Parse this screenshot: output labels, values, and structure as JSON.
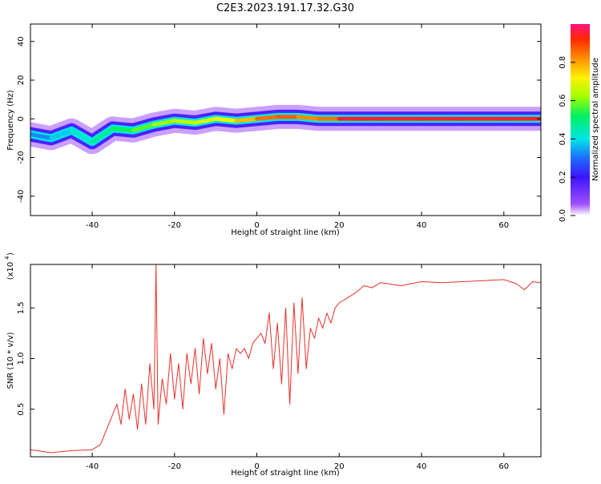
{
  "title": "C2E3.2023.191.17.32.G30",
  "chart_data": [
    {
      "type": "heatmap",
      "xlabel": "Height of straight line (km)",
      "ylabel": "Frequency (Hz)",
      "xlim": [
        -55,
        69
      ],
      "ylim": [
        -50,
        49
      ],
      "xticks": [
        -40,
        -20,
        0,
        20,
        40,
        60
      ],
      "yticks": [
        -40,
        -20,
        0,
        20,
        40
      ],
      "grid": false,
      "ridge": {
        "x": [
          -55,
          -50,
          -45,
          -40,
          -35,
          -30,
          -25,
          -20,
          -15,
          -10,
          -5,
          0,
          5,
          10,
          15,
          20,
          25,
          30,
          40,
          50,
          60,
          69
        ],
        "y": [
          -8,
          -10,
          -6,
          -12,
          -5,
          -6,
          -3,
          -1,
          -2,
          0,
          -1,
          0,
          1,
          1,
          0,
          0,
          0,
          0,
          0,
          0,
          0,
          0
        ],
        "amplitude": [
          0.3,
          0.35,
          0.4,
          0.45,
          0.5,
          0.55,
          0.6,
          0.65,
          0.65,
          0.7,
          0.7,
          0.85,
          0.85,
          0.9,
          0.75,
          0.95,
          0.95,
          0.95,
          0.95,
          0.95,
          0.95,
          0.95
        ]
      },
      "colorbar": {
        "label": "Normalized spectral amplitude",
        "range": [
          0,
          1
        ],
        "ticks": [
          "0.0",
          "0.2",
          "0.4",
          "0.6",
          "0.8"
        ]
      }
    },
    {
      "type": "line",
      "xlabel": "Height of straight line (km)",
      "ylabel": "SNR (10 * v/v)",
      "yscale_label": "(x10",
      "yscale_exp": "4",
      "xlim": [
        -55,
        69
      ],
      "ylim": [
        0.03,
        1.93
      ],
      "xticks": [
        -40,
        -20,
        0,
        20,
        40,
        60
      ],
      "yticks": [
        0.5,
        1.0,
        1.5
      ],
      "ytick_labels": [
        "0.5",
        "1.0",
        "1.5"
      ],
      "color": "#e8302a",
      "grid": false,
      "series": [
        {
          "x": [
            -55,
            -50,
            -45,
            -40,
            -38,
            -36,
            -34,
            -33,
            -32,
            -31,
            -30,
            -29,
            -28,
            -27,
            -26,
            -25,
            -24.5,
            -24,
            -23,
            -22,
            -21,
            -20,
            -19,
            -18,
            -17,
            -16,
            -15,
            -14,
            -13,
            -12,
            -11,
            -10,
            -9,
            -8,
            -7,
            -6,
            -5,
            -4,
            -3,
            -2,
            -1,
            0,
            1,
            2,
            3,
            4,
            5,
            6,
            7,
            8,
            9,
            10,
            11,
            12,
            13,
            14,
            15,
            16,
            17,
            18,
            19,
            20,
            22,
            24,
            26,
            28,
            30,
            35,
            40,
            45,
            50,
            55,
            60,
            63,
            65,
            67,
            69
          ],
          "y": [
            0.1,
            0.07,
            0.09,
            0.1,
            0.15,
            0.35,
            0.55,
            0.35,
            0.7,
            0.4,
            0.65,
            0.3,
            0.75,
            0.35,
            0.95,
            0.5,
            1.93,
            0.35,
            0.8,
            0.55,
            1.05,
            0.6,
            0.95,
            0.5,
            1.05,
            0.75,
            1.1,
            0.65,
            1.2,
            0.85,
            1.15,
            0.7,
            1.0,
            0.45,
            1.05,
            0.9,
            1.1,
            1.05,
            1.1,
            1.0,
            1.15,
            1.2,
            1.25,
            1.15,
            1.45,
            0.9,
            1.35,
            0.75,
            1.5,
            0.55,
            1.55,
            0.85,
            1.6,
            0.9,
            1.3,
            1.2,
            1.4,
            1.3,
            1.45,
            1.35,
            1.5,
            1.55,
            1.6,
            1.65,
            1.72,
            1.7,
            1.75,
            1.72,
            1.76,
            1.75,
            1.76,
            1.77,
            1.78,
            1.74,
            1.68,
            1.76,
            1.75
          ]
        }
      ]
    }
  ]
}
